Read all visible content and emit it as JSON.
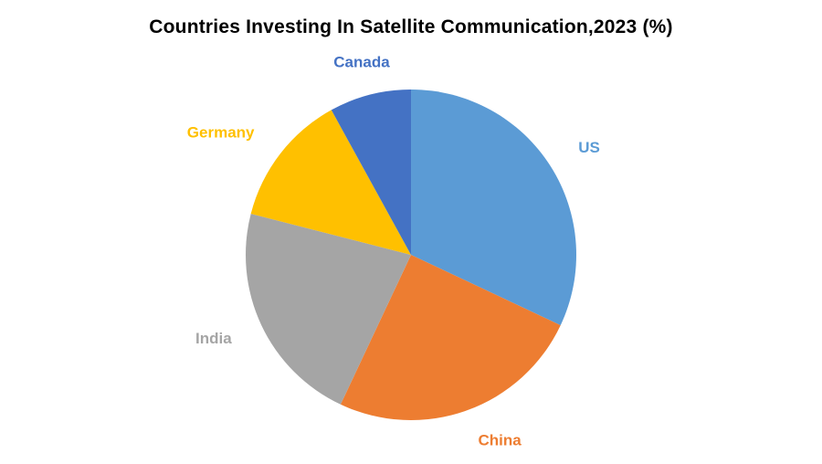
{
  "title": "Countries Investing In Satellite Communication,2023 (%)",
  "chart_data": {
    "type": "pie",
    "title": "Countries Investing In Satellite Communication,2023 (%)",
    "start_angle_deg": 0,
    "direction": "clockwise",
    "legend": "none",
    "labels_position": "outside, colored to match slice",
    "categories": [
      "US",
      "China",
      "India",
      "Germany",
      "Canada"
    ],
    "values": [
      32,
      25,
      22,
      13,
      8
    ],
    "slices": [
      {
        "label": "US",
        "value": 32,
        "color": "#5B9BD5"
      },
      {
        "label": "China",
        "value": 25,
        "color": "#ED7D31"
      },
      {
        "label": "India",
        "value": 22,
        "color": "#A5A5A5"
      },
      {
        "label": "Germany",
        "value": 13,
        "color": "#FFC000"
      },
      {
        "label": "Canada",
        "value": 8,
        "color": "#4472C4"
      }
    ],
    "background_color": "#FFFFFF",
    "title_color": "#000000"
  }
}
